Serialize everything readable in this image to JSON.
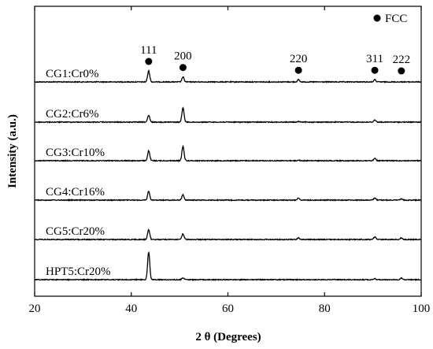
{
  "chart_data": {
    "type": "line",
    "title": "",
    "xlabel": "2 θ (Degrees)",
    "ylabel": "Intensity (a.u.)",
    "xlim": [
      20,
      100
    ],
    "xticks": [
      20,
      40,
      60,
      80,
      100
    ],
    "yticks_shown": false,
    "grid": false,
    "legend": {
      "marker": "filled-circle",
      "label": "FCC",
      "placement": "top-right"
    },
    "peak_annotations": [
      {
        "x": 43.6,
        "label": "111"
      },
      {
        "x": 50.7,
        "label": "200"
      },
      {
        "x": 74.6,
        "label": "220"
      },
      {
        "x": 90.4,
        "label": "311"
      },
      {
        "x": 95.9,
        "label": "222"
      }
    ],
    "series": [
      {
        "name": "CG1:Cr0%",
        "peaks": [
          {
            "x": 43.6,
            "h": 1.0
          },
          {
            "x": 50.7,
            "h": 0.45
          },
          {
            "x": 74.6,
            "h": 0.2
          },
          {
            "x": 90.4,
            "h": 0.2
          },
          {
            "x": 95.9,
            "h": 0.0
          }
        ]
      },
      {
        "name": "CG2:Cr6%",
        "peaks": [
          {
            "x": 43.6,
            "h": 0.6
          },
          {
            "x": 50.7,
            "h": 1.3
          },
          {
            "x": 74.6,
            "h": 0.05
          },
          {
            "x": 90.4,
            "h": 0.2
          },
          {
            "x": 95.9,
            "h": 0.0
          }
        ]
      },
      {
        "name": "CG3:Cr10%",
        "peaks": [
          {
            "x": 43.6,
            "h": 0.9
          },
          {
            "x": 50.7,
            "h": 1.3
          },
          {
            "x": 74.6,
            "h": 0.05
          },
          {
            "x": 90.4,
            "h": 0.2
          },
          {
            "x": 95.9,
            "h": 0.0
          }
        ]
      },
      {
        "name": "CG4:Cr16%",
        "peaks": [
          {
            "x": 43.6,
            "h": 0.8
          },
          {
            "x": 50.7,
            "h": 0.5
          },
          {
            "x": 74.6,
            "h": 0.2
          },
          {
            "x": 90.4,
            "h": 0.2
          },
          {
            "x": 95.9,
            "h": 0.1
          }
        ]
      },
      {
        "name": "CG5:Cr20%",
        "peaks": [
          {
            "x": 43.6,
            "h": 0.9
          },
          {
            "x": 50.7,
            "h": 0.5
          },
          {
            "x": 74.6,
            "h": 0.15
          },
          {
            "x": 90.4,
            "h": 0.25
          },
          {
            "x": 95.9,
            "h": 0.15
          }
        ]
      },
      {
        "name": "HPT5:Cr20%",
        "peaks": [
          {
            "x": 43.6,
            "h": 2.5
          },
          {
            "x": 50.7,
            "h": 0.15
          },
          {
            "x": 74.6,
            "h": 0.0
          },
          {
            "x": 90.4,
            "h": 0.1
          },
          {
            "x": 95.9,
            "h": 0.15
          }
        ]
      }
    ]
  }
}
